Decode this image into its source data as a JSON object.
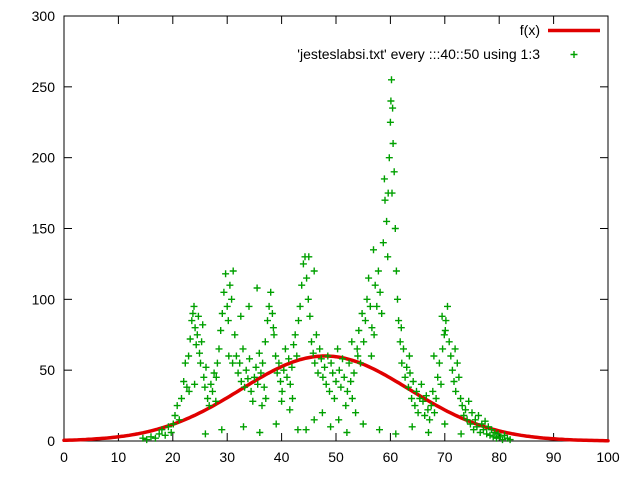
{
  "chart": {
    "background": "#ffffff",
    "border_color": "#000000",
    "legend": {
      "position": "top-right",
      "entries": [
        {
          "label": "f(x)",
          "sample": "line",
          "color": "#e00000"
        },
        {
          "label": "'jesteslabsi.txt' every :::40::50 using 1:3",
          "sample": "points",
          "color": "#00a000",
          "marker": "plus"
        }
      ]
    }
  },
  "chart_data": {
    "type": "scatter",
    "title": "",
    "xlabel": "",
    "ylabel": "",
    "xlim": [
      0,
      100
    ],
    "ylim": [
      0,
      300
    ],
    "x_ticks": [
      0,
      10,
      20,
      30,
      40,
      50,
      60,
      70,
      80,
      90,
      100
    ],
    "y_ticks": [
      0,
      50,
      100,
      150,
      200,
      250,
      300
    ],
    "grid": false,
    "legend_position": "top-right",
    "series": [
      {
        "name": "f(x)",
        "type": "line",
        "color": "#e00000",
        "line_width": 3.5,
        "function": {
          "form": "gaussian",
          "amplitude": 60,
          "mean": 48,
          "sigma": 15.5
        }
      },
      {
        "name": "'jesteslabsi.txt' every :::40::50 using 1:3",
        "type": "scatter",
        "marker": "plus",
        "color": "#00a000",
        "points": [
          [
            14.5,
            2
          ],
          [
            15.2,
            1
          ],
          [
            16,
            3
          ],
          [
            16.8,
            2
          ],
          [
            17.5,
            5
          ],
          [
            18,
            8
          ],
          [
            18.6,
            4
          ],
          [
            19.2,
            10
          ],
          [
            19.7,
            6
          ],
          [
            20.1,
            12
          ],
          [
            20.4,
            18
          ],
          [
            20.8,
            25
          ],
          [
            21.2,
            15
          ],
          [
            21.6,
            30
          ],
          [
            22,
            42
          ],
          [
            22.3,
            55
          ],
          [
            22.6,
            38
          ],
          [
            22.9,
            60
          ],
          [
            23.2,
            72
          ],
          [
            23.5,
            85
          ],
          [
            23.7,
            90
          ],
          [
            23.9,
            95
          ],
          [
            24.1,
            80
          ],
          [
            24.3,
            68
          ],
          [
            24.5,
            75
          ],
          [
            24.7,
            88
          ],
          [
            24.9,
            62
          ],
          [
            25.1,
            55
          ],
          [
            25.3,
            70
          ],
          [
            25.5,
            82
          ],
          [
            25.7,
            45
          ],
          [
            25.9,
            38
          ],
          [
            26.1,
            52
          ],
          [
            26.4,
            30
          ],
          [
            26.7,
            25
          ],
          [
            27,
            40
          ],
          [
            27.3,
            35
          ],
          [
            27.6,
            48
          ],
          [
            27.9,
            28
          ],
          [
            28.2,
            55
          ],
          [
            28.5,
            65
          ],
          [
            28.8,
            78
          ],
          [
            29.1,
            90
          ],
          [
            29.4,
            105
          ],
          [
            29.7,
            118
          ],
          [
            30,
            95
          ],
          [
            30.2,
            85
          ],
          [
            30.5,
            110
          ],
          [
            30.8,
            100
          ],
          [
            31.1,
            120
          ],
          [
            31.4,
            75
          ],
          [
            31.7,
            60
          ],
          [
            32,
            48
          ],
          [
            32.3,
            55
          ],
          [
            32.6,
            42
          ],
          [
            32.9,
            65
          ],
          [
            33.2,
            38
          ],
          [
            33.5,
            50
          ],
          [
            33.8,
            44
          ],
          [
            34.1,
            58
          ],
          [
            34.4,
            35
          ],
          [
            34.7,
            28
          ],
          [
            35,
            45
          ],
          [
            35.3,
            52
          ],
          [
            35.6,
            40
          ],
          [
            35.9,
            62
          ],
          [
            36.2,
            48
          ],
          [
            36.5,
            55
          ],
          [
            36.8,
            38
          ],
          [
            37.1,
            30
          ],
          [
            37.4,
            85
          ],
          [
            37.7,
            95
          ],
          [
            38,
            105
          ],
          [
            38.3,
            90
          ],
          [
            38.6,
            75
          ],
          [
            38.9,
            60
          ],
          [
            39.2,
            48
          ],
          [
            39.5,
            55
          ],
          [
            39.8,
            42
          ],
          [
            40.1,
            35
          ],
          [
            40.4,
            50
          ],
          [
            40.7,
            65
          ],
          [
            41,
            45
          ],
          [
            41.3,
            58
          ],
          [
            41.6,
            40
          ],
          [
            41.9,
            52
          ],
          [
            42.2,
            68
          ],
          [
            42.5,
            75
          ],
          [
            42.8,
            60
          ],
          [
            43.1,
            85
          ],
          [
            43.4,
            95
          ],
          [
            43.7,
            110
          ],
          [
            44,
            125
          ],
          [
            44.3,
            130
          ],
          [
            44.6,
            115
          ],
          [
            44.9,
            100
          ],
          [
            45.2,
            88
          ],
          [
            45.5,
            70
          ],
          [
            45.8,
            62
          ],
          [
            46.1,
            55
          ],
          [
            46.4,
            75
          ],
          [
            46.7,
            48
          ],
          [
            47,
            65
          ],
          [
            47.3,
            58
          ],
          [
            47.6,
            45
          ],
          [
            47.9,
            52
          ],
          [
            48.2,
            40
          ],
          [
            48.5,
            60
          ],
          [
            48.8,
            35
          ],
          [
            49.1,
            55
          ],
          [
            49.4,
            48
          ],
          [
            49.7,
            30
          ],
          [
            50,
            42
          ],
          [
            50.3,
            65
          ],
          [
            50.6,
            50
          ],
          [
            50.9,
            38
          ],
          [
            51.2,
            58
          ],
          [
            51.5,
            45
          ],
          [
            51.8,
            25
          ],
          [
            52.1,
            35
          ],
          [
            52.4,
            55
          ],
          [
            52.7,
            42
          ],
          [
            53,
            30
          ],
          [
            53.3,
            48
          ],
          [
            53.6,
            20
          ],
          [
            53.9,
            65
          ],
          [
            54.2,
            78
          ],
          [
            54.5,
            55
          ],
          [
            54.8,
            90
          ],
          [
            55.1,
            70
          ],
          [
            55.4,
            85
          ],
          [
            55.7,
            100
          ],
          [
            56,
            115
          ],
          [
            56.3,
            95
          ],
          [
            56.6,
            80
          ],
          [
            56.9,
            135
          ],
          [
            57.2,
            110
          ],
          [
            57.5,
            95
          ],
          [
            57.8,
            120
          ],
          [
            58.1,
            105
          ],
          [
            58.4,
            90
          ],
          [
            58.7,
            140
          ],
          [
            59,
            170
          ],
          [
            59.3,
            155
          ],
          [
            59.6,
            175
          ],
          [
            59.8,
            200
          ],
          [
            60,
            225
          ],
          [
            60.1,
            240
          ],
          [
            60.2,
            255
          ],
          [
            60.4,
            235
          ],
          [
            60.5,
            210
          ],
          [
            60.7,
            190
          ],
          [
            60.9,
            150
          ],
          [
            61.1,
            120
          ],
          [
            61.3,
            100
          ],
          [
            61.5,
            85
          ],
          [
            61.8,
            70
          ],
          [
            62.1,
            55
          ],
          [
            62.4,
            65
          ],
          [
            62.7,
            45
          ],
          [
            63,
            52
          ],
          [
            63.3,
            38
          ],
          [
            63.6,
            48
          ],
          [
            63.9,
            30
          ],
          [
            64.2,
            42
          ],
          [
            64.5,
            25
          ],
          [
            64.8,
            35
          ],
          [
            65.1,
            20
          ],
          [
            65.4,
            30
          ],
          [
            65.7,
            40
          ],
          [
            66,
            28
          ],
          [
            66.3,
            18
          ],
          [
            66.6,
            32
          ],
          [
            66.9,
            22
          ],
          [
            67.2,
            15
          ],
          [
            67.5,
            25
          ],
          [
            67.8,
            35
          ],
          [
            68.1,
            20
          ],
          [
            68.4,
            30
          ],
          [
            68.7,
            45
          ],
          [
            69,
            55
          ],
          [
            69.3,
            40
          ],
          [
            69.6,
            65
          ],
          [
            69.9,
            75
          ],
          [
            70.2,
            85
          ],
          [
            70.5,
            95
          ],
          [
            70.8,
            70
          ],
          [
            71.1,
            60
          ],
          [
            71.4,
            50
          ],
          [
            71.7,
            42
          ],
          [
            72,
            35
          ],
          [
            72.3,
            55
          ],
          [
            72.6,
            45
          ],
          [
            72.9,
            30
          ],
          [
            73.2,
            25
          ],
          [
            73.5,
            18
          ],
          [
            73.8,
            22
          ],
          [
            74.1,
            15
          ],
          [
            74.4,
            28
          ],
          [
            74.7,
            12
          ],
          [
            75,
            20
          ],
          [
            75.3,
            8
          ],
          [
            75.6,
            15
          ],
          [
            75.9,
            10
          ],
          [
            76.2,
            18
          ],
          [
            76.5,
            6
          ],
          [
            76.8,
            12
          ],
          [
            77.1,
            8
          ],
          [
            77.4,
            14
          ],
          [
            77.7,
            5
          ],
          [
            78,
            10
          ],
          [
            78.3,
            4
          ],
          [
            78.6,
            8
          ],
          [
            78.9,
            3
          ],
          [
            79.2,
            6
          ],
          [
            79.5,
            2
          ],
          [
            79.8,
            5
          ],
          [
            80.2,
            3
          ],
          [
            80.6,
            1
          ],
          [
            81,
            4
          ],
          [
            81.5,
            2
          ],
          [
            82,
            1
          ],
          [
            26,
            5
          ],
          [
            29,
            8
          ],
          [
            33,
            10
          ],
          [
            36,
            6
          ],
          [
            39,
            12
          ],
          [
            43,
            8
          ],
          [
            46,
            15
          ],
          [
            49,
            10
          ],
          [
            52,
            6
          ],
          [
            55,
            12
          ],
          [
            58,
            8
          ],
          [
            61,
            5
          ],
          [
            64,
            10
          ],
          [
            67,
            6
          ],
          [
            70,
            12
          ],
          [
            73,
            5
          ],
          [
            34,
            95
          ],
          [
            35.5,
            108
          ],
          [
            44.5,
            8
          ],
          [
            47.5,
            20
          ],
          [
            50.5,
            15
          ],
          [
            23,
            35
          ],
          [
            24,
            40
          ],
          [
            30.3,
            60
          ],
          [
            31,
            55
          ],
          [
            59.5,
            130
          ],
          [
            60.3,
            175
          ],
          [
            58.9,
            185
          ],
          [
            68,
            60
          ],
          [
            69.5,
            88
          ],
          [
            70.1,
            78
          ],
          [
            71.9,
            65
          ],
          [
            45,
            130
          ],
          [
            46,
            120
          ],
          [
            37,
            70
          ],
          [
            38.5,
            80
          ],
          [
            52.9,
            70
          ],
          [
            54,
            60
          ],
          [
            56.5,
            60
          ],
          [
            57,
            75
          ],
          [
            62,
            80
          ],
          [
            63.5,
            60
          ],
          [
            42,
            30
          ],
          [
            41.5,
            22
          ],
          [
            40,
            28
          ],
          [
            36.4,
            25
          ],
          [
            32.5,
            88
          ],
          [
            28,
            45
          ]
        ]
      }
    ]
  }
}
